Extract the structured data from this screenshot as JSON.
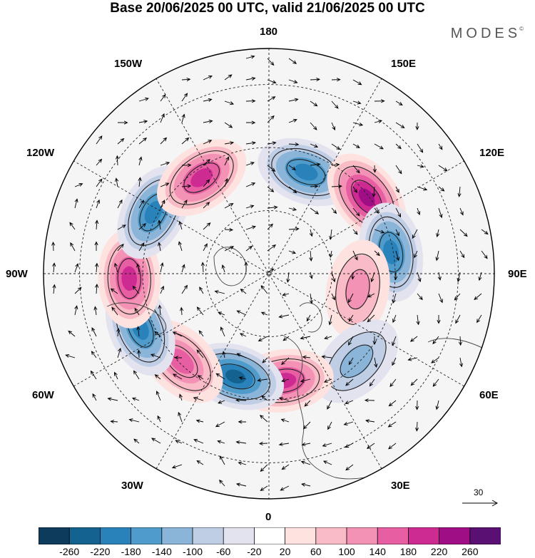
{
  "title": "Base 20/06/2025 00 UTC, valid 21/06/2025 00 UTC",
  "brand": "MODES",
  "brand_mark": "©",
  "longitude_labels": {
    "top": "180",
    "bottom": "0",
    "left": "90W",
    "right": "90E",
    "ul1": "150W",
    "ul2": "120W",
    "ur1": "150E",
    "ur2": "120E",
    "ll1": "60W",
    "ll2": "30W",
    "lr1": "60E",
    "lr2": "30E"
  },
  "reference_vector": {
    "label": "30"
  },
  "colorbar": {
    "colors": [
      "#0c3b5c",
      "#14628f",
      "#2a82bb",
      "#4f9ccc",
      "#8ab5d9",
      "#bfcde5",
      "#e3e3f0",
      "#ffffff",
      "#fde2e0",
      "#f9bcc6",
      "#f392b4",
      "#e85ea3",
      "#cd2a92",
      "#a00e85",
      "#5a0f73"
    ],
    "labels": [
      "-260",
      "-220",
      "-180",
      "-140",
      "-100",
      "-60",
      "-20",
      "20",
      "60",
      "100",
      "140",
      "180",
      "220",
      "260"
    ]
  },
  "anomaly_centers": [
    {
      "lon": 160,
      "r": 0.48,
      "sign": "neg",
      "level": 4
    },
    {
      "lon": 128,
      "r": 0.55,
      "sign": "pos",
      "level": 5
    },
    {
      "lon": 100,
      "r": 0.55,
      "sign": "neg",
      "level": 4
    },
    {
      "lon": 80,
      "r": 0.4,
      "sign": "pos",
      "level": 2
    },
    {
      "lon": 45,
      "r": 0.55,
      "sign": "neg",
      "level": 2
    },
    {
      "lon": 8,
      "r": 0.48,
      "sign": "pos",
      "level": 4
    },
    {
      "lon": -18,
      "r": 0.48,
      "sign": "neg",
      "level": 5
    },
    {
      "lon": -45,
      "r": 0.55,
      "sign": "pos",
      "level": 3
    },
    {
      "lon": -67,
      "r": 0.62,
      "sign": "neg",
      "level": 4
    },
    {
      "lon": -88,
      "r": 0.62,
      "sign": "pos",
      "level": 4
    },
    {
      "lon": -118,
      "r": 0.58,
      "sign": "neg",
      "level": 4
    },
    {
      "lon": -145,
      "r": 0.52,
      "sign": "pos",
      "level": 4
    }
  ]
}
